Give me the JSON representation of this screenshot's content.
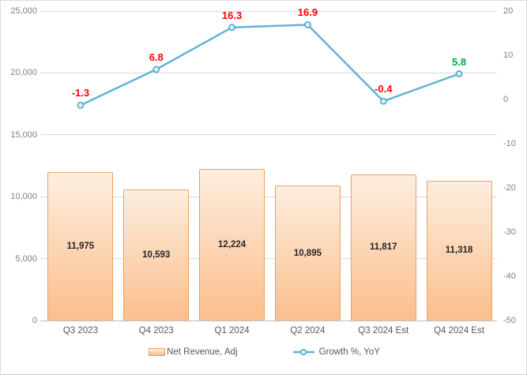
{
  "chart_data": {
    "type": "combo",
    "title": "",
    "categories": [
      "Q3 2023",
      "Q4 2023",
      "Q1 2024",
      "Q2 2024",
      "Q3 2024 Est",
      "Q4 2024 Est"
    ],
    "series": [
      {
        "name": "Net Revenue, Adj",
        "type": "bar",
        "axis": "left",
        "values": [
          11975,
          10593,
          12224,
          10895,
          11817,
          11318
        ],
        "labels": [
          "11,975",
          "10,593",
          "12,224",
          "10,895",
          "11,817",
          "11,318"
        ]
      },
      {
        "name": "Growth %, YoY",
        "type": "line",
        "axis": "right",
        "values": [
          -1.3,
          6.8,
          16.3,
          16.9,
          -0.4,
          5.8
        ],
        "labels": [
          "-1.3",
          "6.8",
          "16.3",
          "16.9",
          "-0.4",
          "5.8"
        ],
        "label_colors": [
          "#fe0000",
          "#fe0000",
          "#fe0000",
          "#fe0000",
          "#fe0000",
          "#00a551"
        ]
      }
    ],
    "left_axis": {
      "min": 0,
      "max": 25000,
      "ticks": [
        "25,000",
        "20,000",
        "15,000",
        "10,000",
        "5,000",
        "0"
      ]
    },
    "right_axis": {
      "min": -50,
      "max": 20,
      "ticks": [
        "20",
        "10",
        "0",
        "-10",
        "-20",
        "-30",
        "-40",
        "-50"
      ]
    },
    "grid": true,
    "legend_position": "bottom",
    "colors": {
      "bar_fill_top": "#fdeedf",
      "bar_fill_bottom": "#fbbe8c",
      "bar_border": "#e8a266",
      "line": "#64b3d3",
      "marker_fill": "#dcf0f8",
      "marker_stroke": "#4fa6c8",
      "grid": "#d9d9d9",
      "axis_line": "#bfbfbf",
      "axis_text": "#7f7f7f",
      "category_text": "#595959",
      "bar_label_text": "#262626"
    }
  }
}
